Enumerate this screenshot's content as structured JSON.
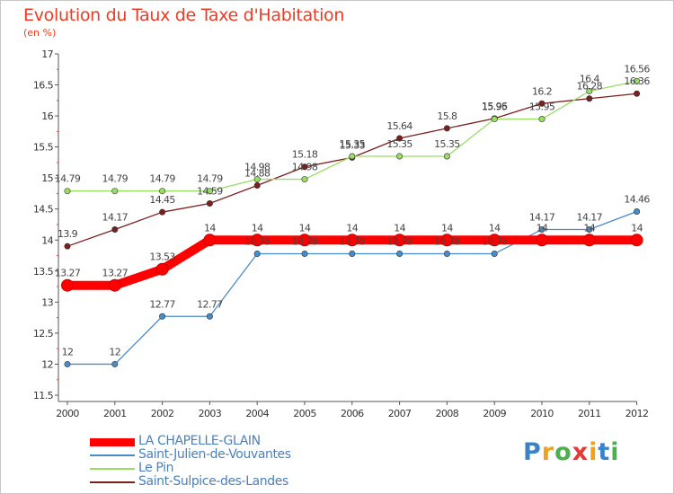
{
  "chart_data": {
    "type": "line",
    "title": "Evolution du Taux de Taxe d'Habitation",
    "ylabel": "(en %)",
    "xlabel": "",
    "categories": [
      "2000",
      "2001",
      "2002",
      "2003",
      "2004",
      "2005",
      "2006",
      "2007",
      "2008",
      "2009",
      "2010",
      "2011",
      "2012"
    ],
    "ylim": [
      11.5,
      17
    ],
    "yticks": [
      "11.5",
      "12",
      "12.5",
      "13",
      "13.5",
      "14",
      "14.5",
      "15",
      "15.5",
      "16",
      "16.5",
      "17"
    ],
    "grid": false,
    "legend_position": "bottom-left",
    "series": [
      {
        "name": "LA CHAPELLE-GLAIN",
        "color": "#ff0000",
        "values": [
          13.27,
          13.27,
          13.53,
          14,
          14,
          14,
          14,
          14,
          14,
          14,
          14,
          14,
          14
        ],
        "labels": [
          "13.27",
          "13.27",
          "13.53",
          "14",
          "14",
          "14",
          "14",
          "14",
          "14",
          "14",
          "14",
          "14",
          "14"
        ]
      },
      {
        "name": "Saint-Julien-de-Vouvantes",
        "color": "#4a8cc8",
        "values": [
          12,
          12,
          12.77,
          12.77,
          13.78,
          13.78,
          13.78,
          13.78,
          13.78,
          13.78,
          14.17,
          14.17,
          14.46
        ],
        "labels": [
          "12",
          "12",
          "12.77",
          "12.77",
          "13.78",
          "13.78",
          "13.78",
          "13.78",
          "13.78",
          "13.78",
          "14.17",
          "14.17",
          "14.46"
        ]
      },
      {
        "name": "Le Pin",
        "color": "#99dd66",
        "values": [
          14.79,
          14.79,
          14.79,
          14.79,
          14.98,
          14.98,
          15.35,
          15.35,
          15.35,
          15.95,
          15.95,
          16.4,
          16.56
        ],
        "labels": [
          "14.79",
          "14.79",
          "14.79",
          "14.79",
          "14.98",
          "14.98",
          "15.35",
          "15.35",
          "15.35",
          "15.95",
          "15.95",
          "16.4",
          "16.56"
        ]
      },
      {
        "name": "Saint-Sulpice-des-Landes",
        "color": "#7a1f1f",
        "values": [
          13.9,
          14.17,
          14.45,
          14.59,
          14.88,
          15.18,
          15.33,
          15.64,
          15.8,
          15.96,
          16.2,
          16.28,
          16.36
        ],
        "labels": [
          "13.9",
          "14.17",
          "14.45",
          "14.59",
          "14.88",
          "15.18",
          "15.33",
          "15.64",
          "15.8",
          "15.96",
          "16.2",
          "16.28",
          "16.36"
        ]
      }
    ]
  },
  "brand": {
    "letters": [
      "P",
      "r",
      "o",
      "x",
      "i",
      "t",
      "i"
    ],
    "colors": [
      "#3b83c8",
      "#f0a21b",
      "#4caf50",
      "#e53935",
      "#f0a21b",
      "#3b83c8",
      "#4caf50"
    ]
  }
}
